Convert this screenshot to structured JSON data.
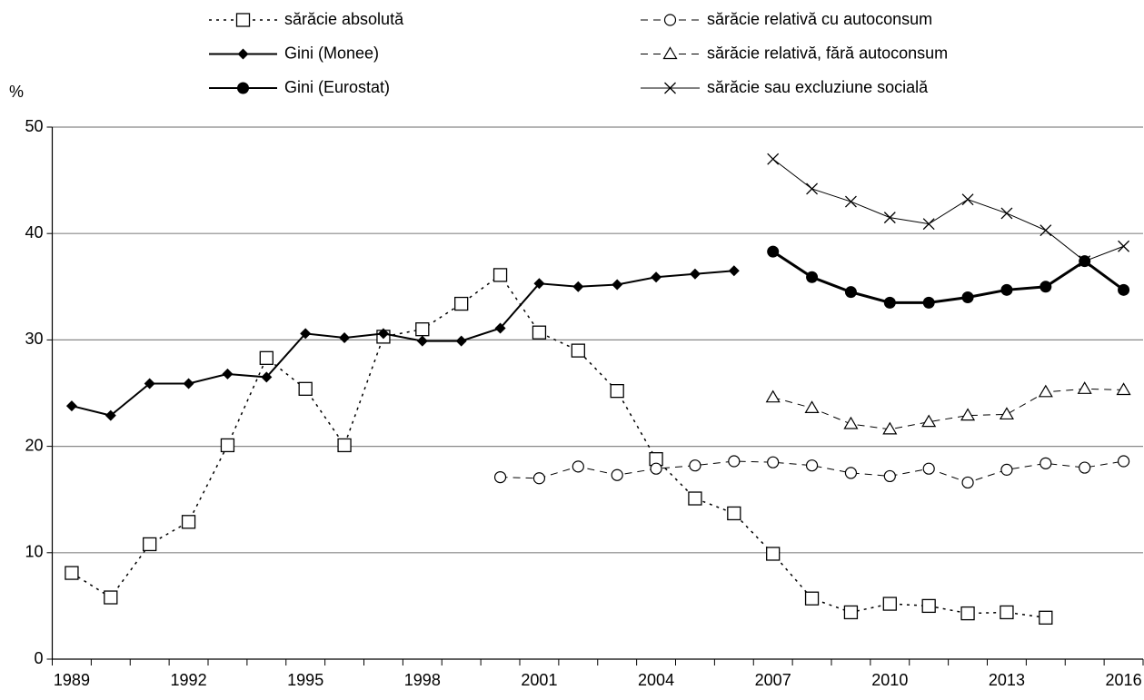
{
  "chart_data": {
    "type": "line",
    "y_label": "%",
    "categories": [
      "1989",
      null,
      null,
      "1992",
      null,
      null,
      "1995",
      null,
      null,
      "1998",
      null,
      null,
      "2001",
      null,
      null,
      "2004",
      null,
      null,
      "2007",
      null,
      null,
      "2010",
      null,
      null,
      "2013",
      null,
      null,
      "2016"
    ],
    "ylim": [
      0,
      50
    ],
    "yticks": [
      0,
      10,
      20,
      30,
      40,
      50
    ],
    "grid": true,
    "series": [
      {
        "name": "sărăcie absolută",
        "color": "#000000",
        "line_style": "dotted",
        "marker": "square",
        "values": [
          8.1,
          5.8,
          10.8,
          12.9,
          20.1,
          28.3,
          25.4,
          20.1,
          30.3,
          31.0,
          33.4,
          36.1,
          30.7,
          29.0,
          25.2,
          18.8,
          15.1,
          13.7,
          9.9,
          5.7,
          4.4,
          5.2,
          5.0,
          4.3,
          4.4,
          3.9,
          null,
          null
        ]
      },
      {
        "name": "Gini (Monee)",
        "color": "#000000",
        "line_style": "solid",
        "marker": "diamond",
        "values": [
          23.8,
          22.9,
          25.9,
          25.9,
          26.8,
          26.5,
          30.6,
          30.2,
          30.6,
          29.9,
          29.9,
          31.1,
          35.3,
          35.0,
          35.2,
          35.9,
          36.2,
          36.5,
          null,
          null,
          null,
          null,
          null,
          null,
          null,
          null,
          null,
          null
        ]
      },
      {
        "name": "Gini (Eurostat)",
        "color": "#000000",
        "line_style": "solid-thick",
        "marker": "filled-circle",
        "values": [
          null,
          null,
          null,
          null,
          null,
          null,
          null,
          null,
          null,
          null,
          null,
          null,
          null,
          null,
          null,
          null,
          null,
          null,
          38.3,
          35.9,
          34.5,
          33.5,
          33.5,
          34.0,
          34.7,
          35.0,
          37.4,
          34.7
        ]
      },
      {
        "name": "sărăcie relativă cu autoconsum",
        "color": "#000000",
        "line_style": "dashed",
        "marker": "circle",
        "values": [
          null,
          null,
          null,
          null,
          null,
          null,
          null,
          null,
          null,
          null,
          null,
          17.1,
          17.0,
          18.1,
          17.3,
          17.9,
          18.2,
          18.6,
          18.5,
          18.2,
          17.5,
          17.2,
          17.9,
          16.6,
          17.8,
          18.4,
          18.0,
          18.6
        ]
      },
      {
        "name": "sărăcie relativă, fără autoconsum",
        "color": "#000000",
        "line_style": "dashed",
        "marker": "triangle",
        "values": [
          null,
          null,
          null,
          null,
          null,
          null,
          null,
          null,
          null,
          null,
          null,
          null,
          null,
          null,
          null,
          null,
          null,
          null,
          24.6,
          23.6,
          22.1,
          21.6,
          22.3,
          22.9,
          23.0,
          25.1,
          25.4,
          25.3
        ]
      },
      {
        "name": "sărăcie sau excluziune socială",
        "color": "#000000",
        "line_style": "thin",
        "marker": "cross",
        "values": [
          null,
          null,
          null,
          null,
          null,
          null,
          null,
          null,
          null,
          null,
          null,
          null,
          null,
          null,
          null,
          null,
          null,
          null,
          47.0,
          44.2,
          43.0,
          41.5,
          40.9,
          43.2,
          41.9,
          40.3,
          37.4,
          38.8
        ]
      }
    ]
  }
}
